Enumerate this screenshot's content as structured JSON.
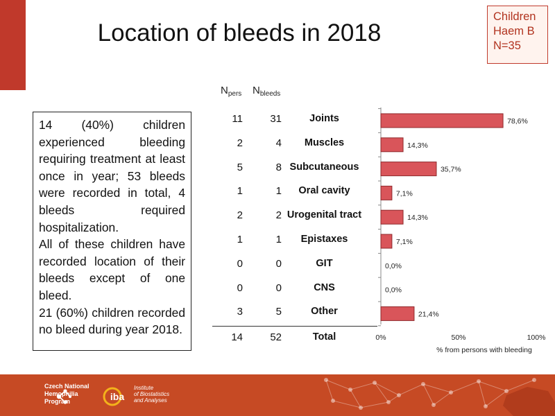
{
  "slide": {
    "title": "Location of bleeds in 2018",
    "badge": [
      "Children",
      "Haem B",
      "N=35"
    ],
    "text_paragraphs": [
      "14 (40%) children experienced bleeding requiring treatment at least once in year; 53 bleeds were recorded in total, 4 bleeds required hospitalization.",
      "All of these children have recorded location of their bleeds except of one bleed.",
      "21 (60%) children recorded no bleed during year 2018."
    ],
    "columns": {
      "npers_main": "N",
      "npers_sub": "pers",
      "nbleeds_main": "N",
      "nbleeds_sub": "bleeds"
    },
    "rows": [
      {
        "npers": "11",
        "nbleeds": "31",
        "location": "Joints"
      },
      {
        "npers": "2",
        "nbleeds": "4",
        "location": "Muscles"
      },
      {
        "npers": "5",
        "nbleeds": "8",
        "location": "Subcutaneous"
      },
      {
        "npers": "1",
        "nbleeds": "1",
        "location": "Oral cavity"
      },
      {
        "npers": "2",
        "nbleeds": "2",
        "location": "Urogenital tract"
      },
      {
        "npers": "1",
        "nbleeds": "1",
        "location": "Epistaxes"
      },
      {
        "npers": "0",
        "nbleeds": "0",
        "location": "GIT"
      },
      {
        "npers": "0",
        "nbleeds": "0",
        "location": "CNS"
      },
      {
        "npers": "3",
        "nbleeds": "5",
        "location": "Other"
      }
    ],
    "total": {
      "npers": "14",
      "nbleeds": "52",
      "label": "Total"
    },
    "footer": {
      "logo1_lines": [
        "Czech National",
        "Hemophilia",
        "Program"
      ],
      "logo2_mark": "iba",
      "logo2_lines": [
        "Institute",
        "of Biostatistics",
        "and Analyses"
      ]
    }
  },
  "colors": {
    "accent": "#c0392b",
    "bar_fill": "#d9555a",
    "bar_stroke": "#8e2a2c",
    "footer": "#c64a24"
  },
  "chart_data": {
    "type": "bar",
    "orientation": "horizontal",
    "categories": [
      "Joints",
      "Muscles",
      "Subcutaneous",
      "Oral cavity",
      "Urogenital tract",
      "Epistaxes",
      "GIT",
      "CNS",
      "Other"
    ],
    "values": [
      78.6,
      14.3,
      35.7,
      7.1,
      14.3,
      7.1,
      0.0,
      0.0,
      21.4
    ],
    "data_labels": [
      "78,6%",
      "14,3%",
      "35,7%",
      "7,1%",
      "14,3%",
      "7,1%",
      "0,0%",
      "0,0%",
      "21,4%"
    ],
    "xlim": [
      0,
      100
    ],
    "xticks": [
      0,
      50,
      100
    ],
    "xtick_labels": [
      "0%",
      "50%",
      "100%"
    ],
    "xlabel": "% from persons with bleeding",
    "grid": false
  }
}
